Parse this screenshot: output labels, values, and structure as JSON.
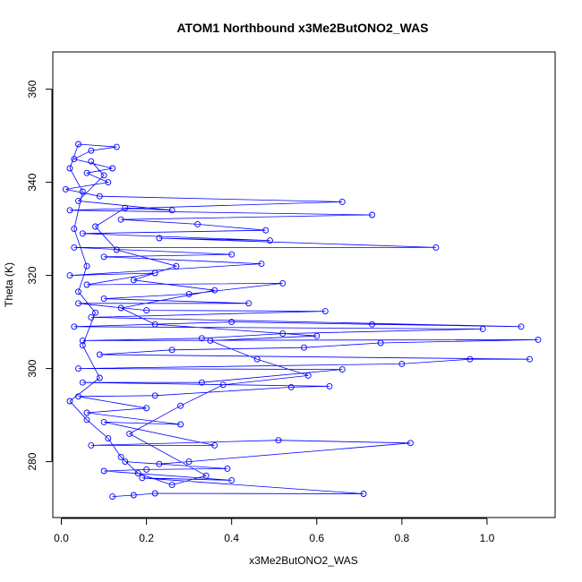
{
  "chart_data": {
    "type": "line",
    "title": "ATOM1 Northbound x3Me2ButONO2_WAS",
    "xlabel": "x3Me2ButONO2_WAS",
    "ylabel": "Theta (K)",
    "xlim": [
      -0.02,
      1.16
    ],
    "ylim": [
      268,
      368
    ],
    "x_ticks": [
      "0.0",
      "0.2",
      "0.4",
      "0.6",
      "0.8",
      "1.0"
    ],
    "x_tick_values": [
      0.0,
      0.2,
      0.4,
      0.6,
      0.8,
      1.0
    ],
    "y_ticks": [
      "280",
      "300",
      "320",
      "340",
      "360"
    ],
    "y_tick_values": [
      280,
      300,
      320,
      340,
      360
    ],
    "grid": false,
    "marker": "open circle",
    "line_color": "#0000ff",
    "series": [
      {
        "values": [
          {
            "x": 0.12,
            "y": 272.5
          },
          {
            "x": 0.17,
            "y": 272.8
          },
          {
            "x": 0.22,
            "y": 273.2
          },
          {
            "x": 0.71,
            "y": 273.1
          },
          {
            "x": 0.19,
            "y": 276.5
          },
          {
            "x": 0.4,
            "y": 276.0
          },
          {
            "x": 0.1,
            "y": 278.0
          },
          {
            "x": 0.2,
            "y": 278.3
          },
          {
            "x": 0.39,
            "y": 278.5
          },
          {
            "x": 0.15,
            "y": 280.0
          },
          {
            "x": 0.23,
            "y": 279.5
          },
          {
            "x": 0.3,
            "y": 280.0
          },
          {
            "x": 0.82,
            "y": 284.0
          },
          {
            "x": 0.51,
            "y": 284.6
          },
          {
            "x": 0.07,
            "y": 283.5
          },
          {
            "x": 0.36,
            "y": 283.5
          },
          {
            "x": 0.1,
            "y": 288.5
          },
          {
            "x": 0.28,
            "y": 288.0
          },
          {
            "x": 0.06,
            "y": 290.5
          },
          {
            "x": 0.2,
            "y": 291.5
          },
          {
            "x": 0.04,
            "y": 294.0
          },
          {
            "x": 0.22,
            "y": 294.2
          },
          {
            "x": 0.54,
            "y": 296.0
          },
          {
            "x": 0.63,
            "y": 296.2
          },
          {
            "x": 0.05,
            "y": 297.0
          },
          {
            "x": 0.33,
            "y": 297.0
          },
          {
            "x": 0.66,
            "y": 299.8
          },
          {
            "x": 0.04,
            "y": 300.0
          },
          {
            "x": 0.8,
            "y": 301.0
          },
          {
            "x": 0.96,
            "y": 302.0
          },
          {
            "x": 1.1,
            "y": 302.0
          },
          {
            "x": 0.09,
            "y": 303.0
          },
          {
            "x": 0.26,
            "y": 304.0
          },
          {
            "x": 0.57,
            "y": 304.5
          },
          {
            "x": 0.75,
            "y": 305.5
          },
          {
            "x": 1.12,
            "y": 306.2
          },
          {
            "x": 0.05,
            "y": 306.0
          },
          {
            "x": 0.33,
            "y": 306.5
          },
          {
            "x": 0.52,
            "y": 307.5
          },
          {
            "x": 0.99,
            "y": 308.5
          },
          {
            "x": 0.03,
            "y": 309.0
          },
          {
            "x": 0.4,
            "y": 310.0
          },
          {
            "x": 0.73,
            "y": 309.5
          },
          {
            "x": 1.08,
            "y": 309.0
          },
          {
            "x": 0.07,
            "y": 311.0
          },
          {
            "x": 0.62,
            "y": 312.3
          },
          {
            "x": 0.2,
            "y": 312.5
          },
          {
            "x": 0.04,
            "y": 314.0
          },
          {
            "x": 0.44,
            "y": 314.0
          },
          {
            "x": 0.1,
            "y": 315.0
          },
          {
            "x": 0.3,
            "y": 316.0
          },
          {
            "x": 0.52,
            "y": 318.3
          },
          {
            "x": 0.06,
            "y": 318.0
          },
          {
            "x": 0.22,
            "y": 320.5
          },
          {
            "x": 0.02,
            "y": 320.0
          },
          {
            "x": 0.47,
            "y": 322.5
          },
          {
            "x": 0.1,
            "y": 324.0
          },
          {
            "x": 0.4,
            "y": 324.5
          },
          {
            "x": 0.03,
            "y": 326.0
          },
          {
            "x": 0.88,
            "y": 326.0
          },
          {
            "x": 0.23,
            "y": 328.0
          },
          {
            "x": 0.49,
            "y": 327.5
          },
          {
            "x": 0.05,
            "y": 329.0
          },
          {
            "x": 0.48,
            "y": 329.7
          },
          {
            "x": 0.32,
            "y": 331.0
          },
          {
            "x": 0.14,
            "y": 332.0
          },
          {
            "x": 0.73,
            "y": 333.0
          },
          {
            "x": 0.02,
            "y": 334.0
          },
          {
            "x": 0.66,
            "y": 335.8
          },
          {
            "x": 0.09,
            "y": 337.0
          },
          {
            "x": 0.01,
            "y": 338.5
          },
          {
            "x": 0.11,
            "y": 340.0
          },
          {
            "x": 0.06,
            "y": 342.0
          },
          {
            "x": 0.12,
            "y": 343.0
          },
          {
            "x": 0.03,
            "y": 345.0
          },
          {
            "x": 0.07,
            "y": 346.8
          },
          {
            "x": 0.13,
            "y": 347.6
          },
          {
            "x": 0.04,
            "y": 348.2
          },
          {
            "x": 0.02,
            "y": 343.0
          },
          {
            "x": 0.05,
            "y": 338.0
          },
          {
            "x": 0.03,
            "y": 330.0
          },
          {
            "x": 0.06,
            "y": 322.0
          },
          {
            "x": 0.04,
            "y": 316.5
          },
          {
            "x": 0.08,
            "y": 312.0
          },
          {
            "x": 0.05,
            "y": 305.0
          },
          {
            "x": 0.09,
            "y": 298.0
          },
          {
            "x": 0.02,
            "y": 293.0
          },
          {
            "x": 0.06,
            "y": 289.0
          },
          {
            "x": 0.11,
            "y": 285.0
          },
          {
            "x": 0.14,
            "y": 281.0
          },
          {
            "x": 0.18,
            "y": 277.5
          },
          {
            "x": 0.26,
            "y": 275.0
          },
          {
            "x": 0.34,
            "y": 277.0
          },
          {
            "x": 0.16,
            "y": 286.0
          },
          {
            "x": 0.28,
            "y": 292.0
          },
          {
            "x": 0.38,
            "y": 296.5
          },
          {
            "x": 0.58,
            "y": 298.5
          },
          {
            "x": 0.46,
            "y": 302.0
          },
          {
            "x": 0.35,
            "y": 306.0
          },
          {
            "x": 0.6,
            "y": 307.0
          },
          {
            "x": 0.22,
            "y": 309.5
          },
          {
            "x": 0.14,
            "y": 313.0
          },
          {
            "x": 0.36,
            "y": 316.8
          },
          {
            "x": 0.17,
            "y": 319.0
          },
          {
            "x": 0.27,
            "y": 322.0
          },
          {
            "x": 0.13,
            "y": 325.5
          },
          {
            "x": 0.08,
            "y": 330.5
          },
          {
            "x": 0.15,
            "y": 334.5
          },
          {
            "x": 0.26,
            "y": 334.0
          },
          {
            "x": 0.04,
            "y": 336.0
          },
          {
            "x": 0.1,
            "y": 341.5
          },
          {
            "x": 0.07,
            "y": 344.5
          }
        ]
      }
    ]
  }
}
